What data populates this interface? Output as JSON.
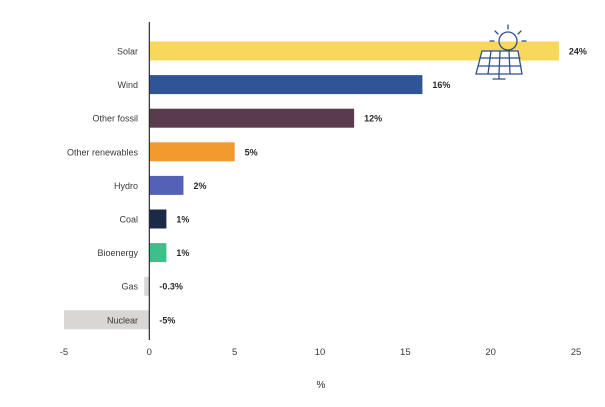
{
  "chart_data": {
    "type": "bar",
    "orientation": "horizontal",
    "categories": [
      "Solar",
      "Wind",
      "Other fossil",
      "Other renewables",
      "Hydro",
      "Coal",
      "Bioenergy",
      "Gas",
      "Nuclear"
    ],
    "values": [
      24,
      16,
      12,
      5,
      2,
      1,
      1,
      -0.3,
      -5
    ],
    "value_labels": [
      "24%",
      "16%",
      "12%",
      "5%",
      "2%",
      "1%",
      "1%",
      "-0.3%",
      "-5%"
    ],
    "colors": [
      "#f9d65c",
      "#2f5596",
      "#5a3b4d",
      "#f29a2e",
      "#5561b7",
      "#1b2a47",
      "#3dbf8a",
      "#d9d6d3",
      "#d9d6d3"
    ],
    "xlabel": "%",
    "ylabel": "",
    "xlim": [
      -5,
      25
    ],
    "xticks": [
      -5,
      0,
      5,
      10,
      15,
      20,
      25
    ],
    "grid": false,
    "annotation_icon": "solar-panel-sun-icon"
  }
}
